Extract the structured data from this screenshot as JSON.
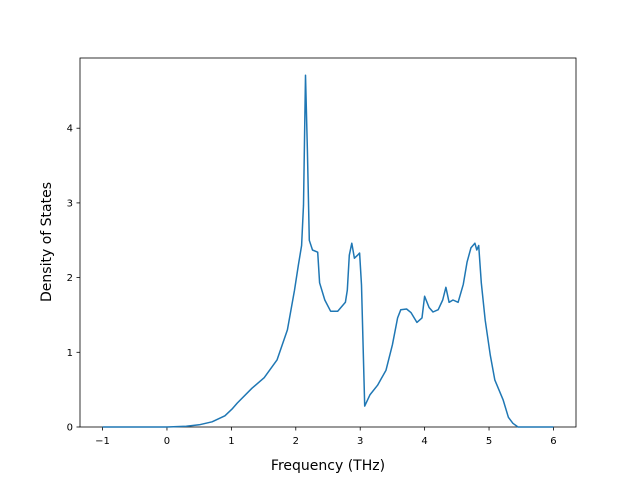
{
  "chart_data": {
    "type": "line",
    "x_label": "Frequency (THz)",
    "y_label": "Density of States",
    "x": [
      -1,
      0,
      0.3,
      0.5,
      0.7,
      0.9,
      1.01,
      1.09,
      1.32,
      1.51,
      1.71,
      1.87,
      1.98,
      2.04,
      2.09,
      2.12,
      2.15,
      2.18,
      2.21,
      2.26,
      2.34,
      2.37,
      2.45,
      2.54,
      2.65,
      2.77,
      2.8,
      2.83,
      2.87,
      2.91,
      2.96,
      2.99,
      3.02,
      3.07,
      3.15,
      3.27,
      3.4,
      3.5,
      3.58,
      3.63,
      3.72,
      3.79,
      3.88,
      3.96,
      4.0,
      4.07,
      4.13,
      4.21,
      4.28,
      4.33,
      4.38,
      4.44,
      4.52,
      4.6,
      4.66,
      4.72,
      4.78,
      4.81,
      4.84,
      4.88,
      4.94,
      5.02,
      5.09,
      5.22,
      5.3,
      5.37,
      5.45,
      6.0
    ],
    "series": [
      {
        "color": "#1f77b4",
        "values": [
          0,
          0,
          0.01,
          0.03,
          0.07,
          0.15,
          0.24,
          0.32,
          0.52,
          0.66,
          0.9,
          1.3,
          1.83,
          2.17,
          2.43,
          2.97,
          4.71,
          3.7,
          2.5,
          2.37,
          2.34,
          1.93,
          1.7,
          1.55,
          1.55,
          1.67,
          1.83,
          2.3,
          2.46,
          2.26,
          2.3,
          2.33,
          1.9,
          0.28,
          0.43,
          0.56,
          0.76,
          1.1,
          1.46,
          1.57,
          1.58,
          1.53,
          1.4,
          1.46,
          1.75,
          1.6,
          1.54,
          1.57,
          1.7,
          1.87,
          1.67,
          1.7,
          1.67,
          1.91,
          2.21,
          2.4,
          2.46,
          2.37,
          2.43,
          1.93,
          1.43,
          0.96,
          0.63,
          0.36,
          0.13,
          0.05,
          0,
          0
        ]
      }
    ],
    "xlim": [
      -1.35,
      6.35
    ],
    "ylim": [
      0,
      4.94
    ],
    "xticks": [
      {
        "value": -1,
        "label": "−1"
      },
      0,
      1,
      2,
      3,
      4,
      5,
      6
    ],
    "yticks": [
      0,
      1,
      2,
      3,
      4
    ]
  }
}
